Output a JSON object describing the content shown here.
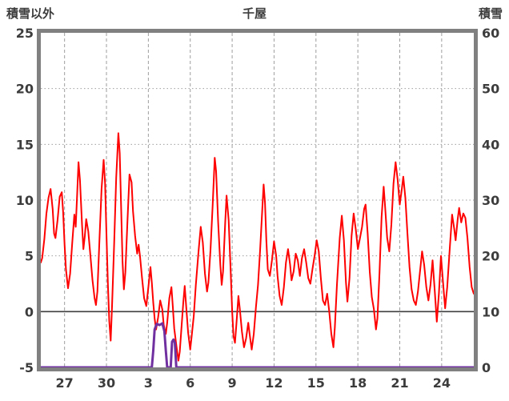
{
  "chart_data": {
    "type": "line",
    "title": "千屋",
    "left_axis": {
      "label": "積雪以外",
      "min": -5,
      "max": 25,
      "ticks": [
        25,
        20,
        15,
        10,
        5,
        0,
        -5
      ]
    },
    "right_axis": {
      "label": "積雪",
      "min": 0,
      "max": 60,
      "ticks": [
        60,
        50,
        40,
        30,
        20,
        10,
        0
      ]
    },
    "x_axis": {
      "min": 0,
      "max": 31,
      "ticks": [
        {
          "label": "27",
          "x": 1.7
        },
        {
          "label": "30",
          "x": 4.7
        },
        {
          "label": "3",
          "x": 7.7
        },
        {
          "label": "6",
          "x": 10.7
        },
        {
          "label": "9",
          "x": 13.7
        },
        {
          "label": "12",
          "x": 16.7
        },
        {
          "label": "15",
          "x": 19.7
        },
        {
          "label": "18",
          "x": 22.7
        },
        {
          "label": "21",
          "x": 25.7
        },
        {
          "label": "24",
          "x": 28.7
        }
      ]
    },
    "zero_line_value": 0,
    "colors": {
      "background": "#ffffff",
      "border": "#808080",
      "grid": "#9e9e9e",
      "zero_line": "#3f3f3f",
      "text": "#3c3c3c",
      "temperature": "#ff0000",
      "snow": "#7030a0"
    },
    "legend_position": "none",
    "grid_on": true,
    "series": [
      {
        "name": "積雪以外",
        "axis": "left",
        "color": "#ff0000",
        "width": 2,
        "points": [
          [
            0.0,
            4.4
          ],
          [
            0.1,
            4.8
          ],
          [
            0.25,
            6.5
          ],
          [
            0.4,
            8.8
          ],
          [
            0.55,
            10.2
          ],
          [
            0.7,
            11.0
          ],
          [
            0.85,
            9.2
          ],
          [
            0.95,
            7.0
          ],
          [
            1.05,
            6.6
          ],
          [
            1.2,
            8.2
          ],
          [
            1.35,
            10.3
          ],
          [
            1.5,
            10.7
          ],
          [
            1.6,
            8.9
          ],
          [
            1.7,
            6.0
          ],
          [
            1.8,
            3.8
          ],
          [
            1.95,
            2.1
          ],
          [
            2.1,
            3.4
          ],
          [
            2.25,
            6.2
          ],
          [
            2.4,
            8.7
          ],
          [
            2.5,
            7.6
          ],
          [
            2.6,
            10.5
          ],
          [
            2.7,
            13.4
          ],
          [
            2.8,
            11.8
          ],
          [
            2.95,
            7.8
          ],
          [
            3.05,
            5.6
          ],
          [
            3.15,
            6.8
          ],
          [
            3.25,
            8.3
          ],
          [
            3.4,
            7.2
          ],
          [
            3.55,
            5.0
          ],
          [
            3.7,
            2.8
          ],
          [
            3.85,
            1.2
          ],
          [
            3.95,
            0.6
          ],
          [
            4.05,
            1.8
          ],
          [
            4.2,
            6.5
          ],
          [
            4.35,
            11.0
          ],
          [
            4.5,
            13.6
          ],
          [
            4.6,
            11.5
          ],
          [
            4.7,
            7.0
          ],
          [
            4.8,
            2.5
          ],
          [
            4.9,
            -0.8
          ],
          [
            5.0,
            -2.6
          ],
          [
            5.1,
            0.5
          ],
          [
            5.25,
            6.0
          ],
          [
            5.4,
            12.0
          ],
          [
            5.55,
            16.0
          ],
          [
            5.65,
            14.2
          ],
          [
            5.75,
            9.5
          ],
          [
            5.85,
            4.5
          ],
          [
            5.95,
            2.0
          ],
          [
            6.05,
            3.5
          ],
          [
            6.2,
            8.0
          ],
          [
            6.35,
            12.3
          ],
          [
            6.5,
            11.6
          ],
          [
            6.6,
            9.0
          ],
          [
            6.75,
            6.8
          ],
          [
            6.9,
            5.2
          ],
          [
            7.0,
            6.0
          ],
          [
            7.1,
            5.0
          ],
          [
            7.25,
            3.0
          ],
          [
            7.4,
            1.2
          ],
          [
            7.55,
            0.5
          ],
          [
            7.7,
            2.2
          ],
          [
            7.85,
            4.0
          ],
          [
            7.95,
            2.6
          ],
          [
            8.05,
            0.8
          ],
          [
            8.15,
            -0.6
          ],
          [
            8.25,
            -1.6
          ],
          [
            8.4,
            -0.5
          ],
          [
            8.55,
            1.0
          ],
          [
            8.7,
            0.2
          ],
          [
            8.8,
            -1.2
          ],
          [
            8.95,
            -2.0
          ],
          [
            9.05,
            -1.0
          ],
          [
            9.2,
            1.2
          ],
          [
            9.35,
            2.2
          ],
          [
            9.45,
            0.5
          ],
          [
            9.55,
            -1.5
          ],
          [
            9.7,
            -3.0
          ],
          [
            9.85,
            -4.4
          ],
          [
            9.95,
            -3.6
          ],
          [
            10.05,
            -1.8
          ],
          [
            10.2,
            0.8
          ],
          [
            10.3,
            2.3
          ],
          [
            10.4,
            0.6
          ],
          [
            10.55,
            -1.9
          ],
          [
            10.7,
            -3.4
          ],
          [
            10.8,
            -2.2
          ],
          [
            10.95,
            -0.4
          ],
          [
            11.1,
            2.4
          ],
          [
            11.3,
            5.5
          ],
          [
            11.45,
            7.6
          ],
          [
            11.6,
            6.2
          ],
          [
            11.75,
            3.4
          ],
          [
            11.9,
            1.8
          ],
          [
            12.0,
            2.6
          ],
          [
            12.15,
            5.5
          ],
          [
            12.3,
            9.5
          ],
          [
            12.45,
            13.8
          ],
          [
            12.55,
            12.6
          ],
          [
            12.7,
            8.0
          ],
          [
            12.85,
            4.2
          ],
          [
            12.95,
            2.4
          ],
          [
            13.05,
            3.6
          ],
          [
            13.2,
            8.0
          ],
          [
            13.3,
            10.4
          ],
          [
            13.45,
            8.2
          ],
          [
            13.6,
            3.5
          ],
          [
            13.7,
            0.0
          ],
          [
            13.8,
            -2.2
          ],
          [
            13.9,
            -2.8
          ],
          [
            14.0,
            -1.2
          ],
          [
            14.15,
            1.4
          ],
          [
            14.25,
            0.2
          ],
          [
            14.4,
            -1.8
          ],
          [
            14.55,
            -3.2
          ],
          [
            14.7,
            -2.4
          ],
          [
            14.85,
            -1.0
          ],
          [
            14.95,
            -2.0
          ],
          [
            15.1,
            -3.4
          ],
          [
            15.25,
            -2.0
          ],
          [
            15.4,
            0.4
          ],
          [
            15.55,
            2.4
          ],
          [
            15.7,
            5.5
          ],
          [
            15.85,
            9.0
          ],
          [
            15.95,
            11.4
          ],
          [
            16.05,
            9.8
          ],
          [
            16.15,
            6.4
          ],
          [
            16.25,
            3.8
          ],
          [
            16.4,
            3.2
          ],
          [
            16.55,
            4.6
          ],
          [
            16.7,
            6.3
          ],
          [
            16.85,
            5.0
          ],
          [
            16.95,
            3.2
          ],
          [
            17.1,
            1.4
          ],
          [
            17.25,
            0.6
          ],
          [
            17.4,
            2.2
          ],
          [
            17.55,
            4.4
          ],
          [
            17.7,
            5.6
          ],
          [
            17.85,
            4.2
          ],
          [
            17.95,
            2.8
          ],
          [
            18.1,
            3.6
          ],
          [
            18.25,
            5.2
          ],
          [
            18.4,
            4.6
          ],
          [
            18.55,
            3.2
          ],
          [
            18.7,
            4.8
          ],
          [
            18.85,
            5.6
          ],
          [
            19.0,
            4.4
          ],
          [
            19.15,
            3.0
          ],
          [
            19.3,
            2.5
          ],
          [
            19.45,
            3.8
          ],
          [
            19.6,
            5.0
          ],
          [
            19.75,
            6.4
          ],
          [
            19.9,
            5.4
          ],
          [
            20.05,
            3.0
          ],
          [
            20.2,
            1.0
          ],
          [
            20.35,
            0.6
          ],
          [
            20.5,
            1.6
          ],
          [
            20.65,
            0.0
          ],
          [
            20.8,
            -2.0
          ],
          [
            20.95,
            -3.2
          ],
          [
            21.05,
            -1.4
          ],
          [
            21.2,
            2.4
          ],
          [
            21.4,
            6.6
          ],
          [
            21.55,
            8.6
          ],
          [
            21.7,
            6.4
          ],
          [
            21.85,
            2.6
          ],
          [
            21.95,
            0.9
          ],
          [
            22.1,
            3.0
          ],
          [
            22.25,
            6.8
          ],
          [
            22.4,
            8.8
          ],
          [
            22.55,
            7.4
          ],
          [
            22.7,
            5.6
          ],
          [
            22.85,
            6.6
          ],
          [
            23.0,
            7.6
          ],
          [
            23.15,
            9.2
          ],
          [
            23.25,
            9.6
          ],
          [
            23.4,
            7.0
          ],
          [
            23.55,
            3.6
          ],
          [
            23.7,
            1.3
          ],
          [
            23.85,
            0.2
          ],
          [
            24.0,
            -1.6
          ],
          [
            24.1,
            -0.6
          ],
          [
            24.25,
            3.5
          ],
          [
            24.4,
            8.5
          ],
          [
            24.55,
            11.2
          ],
          [
            24.65,
            9.4
          ],
          [
            24.8,
            6.6
          ],
          [
            24.95,
            5.4
          ],
          [
            25.1,
            7.8
          ],
          [
            25.25,
            11.5
          ],
          [
            25.4,
            13.4
          ],
          [
            25.55,
            11.8
          ],
          [
            25.7,
            9.6
          ],
          [
            25.85,
            11.0
          ],
          [
            25.95,
            12.1
          ],
          [
            26.1,
            10.2
          ],
          [
            26.25,
            7.0
          ],
          [
            26.4,
            4.0
          ],
          [
            26.55,
            2.0
          ],
          [
            26.7,
            1.0
          ],
          [
            26.85,
            0.6
          ],
          [
            27.0,
            1.8
          ],
          [
            27.15,
            3.6
          ],
          [
            27.3,
            5.4
          ],
          [
            27.45,
            4.2
          ],
          [
            27.6,
            2.2
          ],
          [
            27.75,
            1.0
          ],
          [
            27.9,
            2.4
          ],
          [
            28.05,
            4.6
          ],
          [
            28.2,
            2.0
          ],
          [
            28.35,
            -0.9
          ],
          [
            28.5,
            1.6
          ],
          [
            28.65,
            5.0
          ],
          [
            28.8,
            2.6
          ],
          [
            28.95,
            0.3
          ],
          [
            29.1,
            2.2
          ],
          [
            29.3,
            6.0
          ],
          [
            29.45,
            8.7
          ],
          [
            29.6,
            7.4
          ],
          [
            29.7,
            6.4
          ],
          [
            29.85,
            8.3
          ],
          [
            29.95,
            9.3
          ],
          [
            30.1,
            8.0
          ],
          [
            30.25,
            8.8
          ],
          [
            30.4,
            8.4
          ],
          [
            30.55,
            6.6
          ],
          [
            30.7,
            4.0
          ],
          [
            30.85,
            2.2
          ],
          [
            31.0,
            1.6
          ]
        ]
      },
      {
        "name": "積雪",
        "axis": "right",
        "color": "#7030a0",
        "width": 3,
        "points": [
          [
            0.0,
            0
          ],
          [
            7.95,
            0
          ],
          [
            8.05,
            3.0
          ],
          [
            8.15,
            6.8
          ],
          [
            8.3,
            7.8
          ],
          [
            8.5,
            7.6
          ],
          [
            8.7,
            7.9
          ],
          [
            8.85,
            6.5
          ],
          [
            8.95,
            3.0
          ],
          [
            9.05,
            0
          ],
          [
            9.3,
            0
          ],
          [
            9.4,
            4.6
          ],
          [
            9.5,
            5.0
          ],
          [
            9.6,
            4.4
          ],
          [
            9.7,
            0
          ],
          [
            31.0,
            0
          ]
        ]
      }
    ]
  }
}
